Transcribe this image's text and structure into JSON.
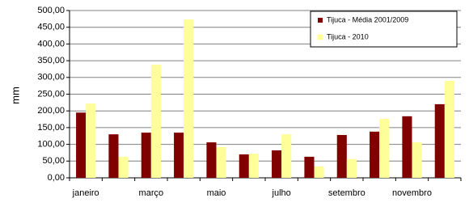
{
  "chart_data": {
    "type": "bar",
    "y_label": "mm",
    "categories": [
      "janeiro",
      null,
      "março",
      null,
      "maio",
      null,
      "julho",
      null,
      "setembro",
      null,
      "novembro",
      null
    ],
    "series": [
      {
        "name": "Tijuca - Média 2001/2009",
        "color": "#800000",
        "values": [
          195,
          130,
          135,
          135,
          106,
          70,
          82,
          63,
          128,
          138,
          184,
          220
        ]
      },
      {
        "name": "Tijuca - 2010",
        "color": "#ffff99",
        "values": [
          222,
          63,
          338,
          473,
          92,
          72,
          130,
          34,
          56,
          176,
          106,
          290
        ]
      }
    ],
    "ylim": [
      0,
      500
    ],
    "yticks": [
      {
        "value": 0,
        "label": "0,00"
      },
      {
        "value": 50,
        "label": "50,00"
      },
      {
        "value": 100,
        "label": "100,00"
      },
      {
        "value": 150,
        "label": "150,00"
      },
      {
        "value": 200,
        "label": "200,00"
      },
      {
        "value": 250,
        "label": "250,00"
      },
      {
        "value": 300,
        "label": "300,00"
      },
      {
        "value": 350,
        "label": "350,00"
      },
      {
        "value": 400,
        "label": "400,00"
      },
      {
        "value": 450,
        "label": "450,00"
      },
      {
        "value": 500,
        "label": "500,00"
      }
    ],
    "grid": true,
    "legend": "top-right"
  }
}
